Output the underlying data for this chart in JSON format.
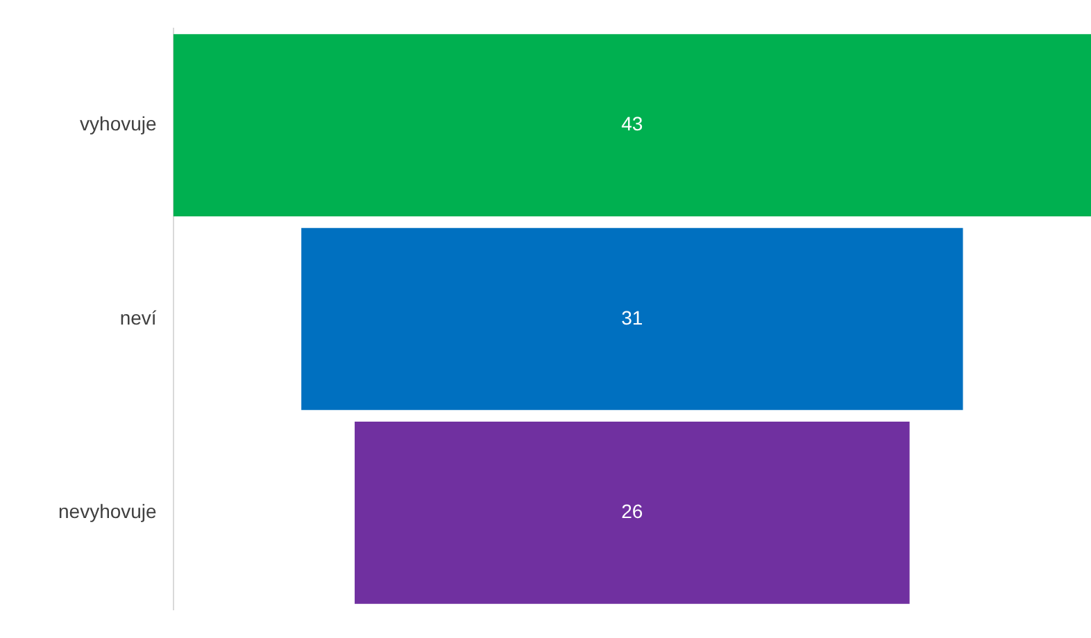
{
  "chart_data": {
    "type": "other",
    "categories": [
      "vyhovuje",
      "neví",
      "nevyhovuje"
    ],
    "values": [
      43,
      31,
      26
    ],
    "colors": [
      "#00b050",
      "#0070c0",
      "#7030a0"
    ],
    "data_labels": true
  }
}
